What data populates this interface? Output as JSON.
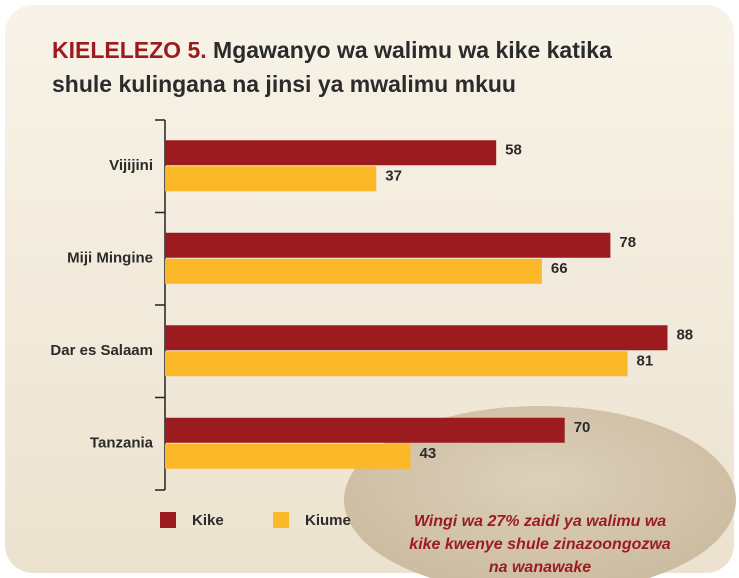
{
  "chart_data": {
    "type": "hbar",
    "title_label": "KIELELEZO 5.",
    "title": [
      "Mgawanyo wa walimu wa kike katika",
      "shule kulingana na jinsi ya mwalimu mkuu"
    ],
    "categories": [
      "Vijijini",
      "Miji Mingine",
      "Dar es Salaam",
      "Tanzania"
    ],
    "series": [
      {
        "name": "Kike",
        "color": "#9b1b1f",
        "values": [
          58,
          78,
          88,
          70
        ]
      },
      {
        "name": "Kiume",
        "color": "#fbb829",
        "values": [
          37,
          66,
          81,
          43
        ]
      }
    ],
    "xlim": [
      0,
      100
    ],
    "annotation": [
      "Wingi wa 27% zaidi ya walimu wa",
      "kike kwenye shule zinazoongozwa",
      "na wanawake"
    ]
  }
}
